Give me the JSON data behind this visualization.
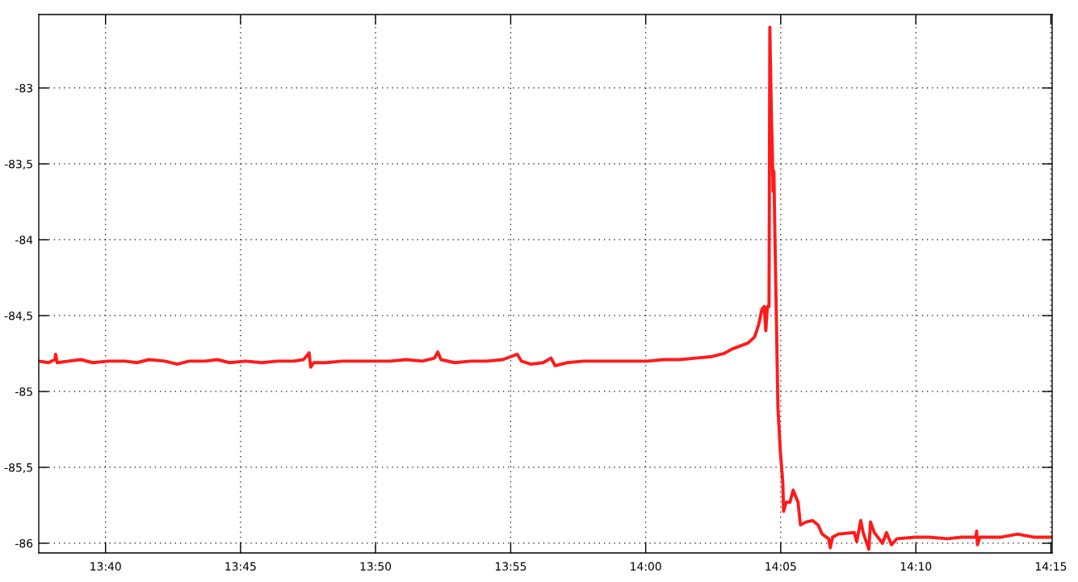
{
  "chart_data": {
    "type": "line",
    "x": [
      13.6255,
      13.6315,
      13.6354,
      13.6359,
      13.6369,
      13.6439,
      13.6513,
      13.6588,
      13.6687,
      13.6786,
      13.6861,
      13.6935,
      13.7034,
      13.7109,
      13.7183,
      13.7282,
      13.7357,
      13.7431,
      13.7531,
      13.763,
      13.7729,
      13.7828,
      13.7888,
      13.7913,
      13.7923,
      13.7933,
      13.7952,
      13.8027,
      13.8126,
      13.8225,
      13.8325,
      13.8424,
      13.8523,
      13.8622,
      13.8697,
      13.8717,
      13.8737,
      13.8821,
      13.892,
      13.9019,
      13.9119,
      13.9168,
      13.9208,
      13.9233,
      13.9292,
      13.9367,
      13.9416,
      13.9441,
      13.9516,
      13.9615,
      13.9714,
      13.9813,
      13.9913,
      14.0012,
      14.0111,
      14.021,
      14.031,
      14.0409,
      14.0483,
      14.0533,
      14.0583,
      14.0632,
      14.0672,
      14.0697,
      14.0717,
      14.0731,
      14.0741,
      14.0751,
      14.0761,
      14.0766,
      14.0776,
      14.0781,
      14.0786,
      14.0791,
      14.0796,
      14.0806,
      14.0816,
      14.0831,
      14.0846,
      14.0851,
      14.0866,
      14.089,
      14.091,
      14.094,
      14.0955,
      14.099,
      14.1029,
      14.1064,
      14.1089,
      14.1129,
      14.1139,
      14.1153,
      14.1188,
      14.1287,
      14.1302,
      14.1327,
      14.1342,
      14.1377,
      14.1387,
      14.1411,
      14.1461,
      14.1486,
      14.1516,
      14.155,
      14.1665,
      14.1749,
      14.1863,
      14.1947,
      14.2037,
      14.2042,
      14.2047,
      14.2062,
      14.2196,
      14.2295,
      14.2394,
      14.2503
    ],
    "series": [
      {
        "color": "#ff1a1a",
        "values": [
          -84.8,
          -84.81,
          -84.79,
          -84.755,
          -84.81,
          -84.8,
          -84.79,
          -84.81,
          -84.8,
          -84.8,
          -84.81,
          -84.79,
          -84.8,
          -84.82,
          -84.8,
          -84.8,
          -84.79,
          -84.81,
          -84.8,
          -84.81,
          -84.8,
          -84.8,
          -84.79,
          -84.76,
          -84.745,
          -84.84,
          -84.81,
          -84.81,
          -84.8,
          -84.8,
          -84.8,
          -84.8,
          -84.79,
          -84.8,
          -84.78,
          -84.74,
          -84.79,
          -84.81,
          -84.8,
          -84.8,
          -84.79,
          -84.77,
          -84.755,
          -84.8,
          -84.82,
          -84.81,
          -84.78,
          -84.83,
          -84.81,
          -84.8,
          -84.8,
          -84.8,
          -84.8,
          -84.8,
          -84.79,
          -84.79,
          -84.78,
          -84.77,
          -84.75,
          -84.72,
          -84.7,
          -84.68,
          -84.64,
          -84.56,
          -84.46,
          -84.44,
          -84.6,
          -84.44,
          -84.44,
          -82.6,
          -83.2,
          -83.4,
          -83.68,
          -83.55,
          -83.89,
          -84.5,
          -85.11,
          -85.4,
          -85.6,
          -85.79,
          -85.73,
          -85.73,
          -85.65,
          -85.73,
          -85.88,
          -85.86,
          -85.85,
          -85.88,
          -85.94,
          -85.97,
          -86.03,
          -85.96,
          -85.94,
          -85.93,
          -85.99,
          -85.85,
          -85.93,
          -86.04,
          -85.86,
          -85.93,
          -86.0,
          -85.93,
          -86.01,
          -85.97,
          -85.96,
          -85.96,
          -85.97,
          -85.96,
          -85.96,
          -85.92,
          -86.01,
          -85.96,
          -85.96,
          -85.94,
          -85.96,
          -85.96
        ]
      }
    ],
    "xlim": [
      13.6255,
      14.2508
    ],
    "xticks": [
      {
        "value": 13.6667,
        "label": "13:40"
      },
      {
        "value": 13.75,
        "label": "13:45"
      },
      {
        "value": 13.8333,
        "label": "13:50"
      },
      {
        "value": 13.9167,
        "label": "13:55"
      },
      {
        "value": 14.0,
        "label": "14:00"
      },
      {
        "value": 14.0833,
        "label": "14:05"
      },
      {
        "value": 14.1667,
        "label": "14:10"
      },
      {
        "value": 14.25,
        "label": "14:15"
      }
    ],
    "ylim": [
      -86.064,
      -82.516
    ],
    "yticks": [
      -86,
      {
        "value": -85.5,
        "label": "-85,5"
      },
      -85,
      {
        "value": -84.5,
        "label": "-84,5"
      },
      -84,
      {
        "value": -83.5,
        "label": "-83,5"
      },
      -83
    ],
    "grid": true,
    "line_style": "solid"
  }
}
